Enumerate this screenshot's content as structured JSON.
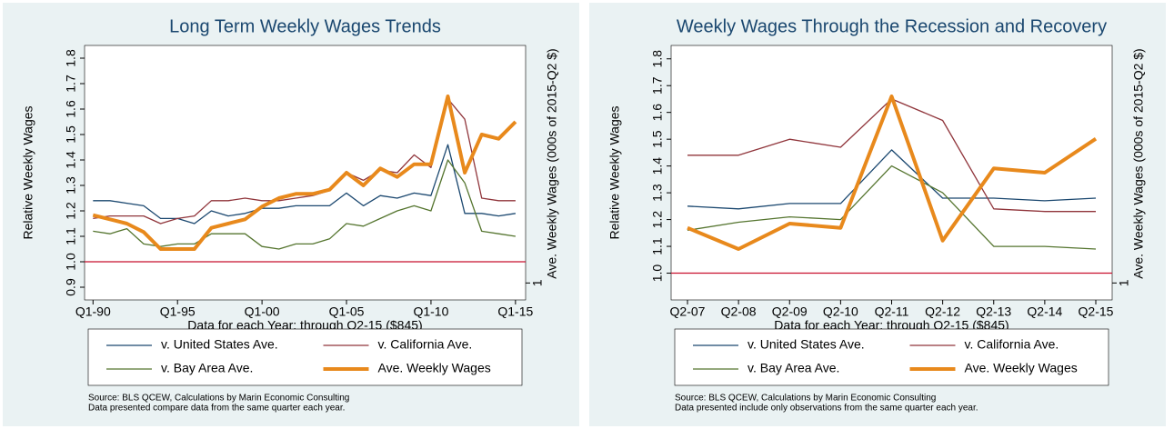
{
  "chart_data": [
    {
      "type": "line",
      "title": "Long Term Weekly Wages Trends",
      "xlabel": "Data for each Year: through Q2-15 ($845)",
      "ylabel": "Relative Weekly Wages",
      "y2label": "Ave. Weekly Wages (000s of 2015-Q2 $)",
      "x": [
        1990,
        1991,
        1992,
        1993,
        1994,
        1995,
        1996,
        1997,
        1998,
        1999,
        2000,
        2001,
        2002,
        2003,
        2004,
        2005,
        2006,
        2007,
        2008,
        2009,
        2010,
        2011,
        2012,
        2013,
        2014,
        2015
      ],
      "xlim": [
        1989.5,
        2015.6
      ],
      "xticks": [
        {
          "value": 1990,
          "label": "Q1-90"
        },
        {
          "value": 1995,
          "label": "Q1-95"
        },
        {
          "value": 2000,
          "label": "Q1-00"
        },
        {
          "value": 2005,
          "label": "Q1-05"
        },
        {
          "value": 2010,
          "label": "Q1-10"
        },
        {
          "value": 2015,
          "label": "Q1-15"
        }
      ],
      "ylim": [
        0.85,
        1.85
      ],
      "yticks": [
        0.9,
        {
          "value": 1,
          "label": "1.0"
        },
        1.1,
        1.2,
        1.3,
        1.4,
        1.5,
        1.6,
        1.7,
        1.8
      ],
      "y2lim": [
        0.96,
        1.56
      ],
      "y2ticks": [
        1
      ],
      "refline": 1,
      "refline_color": "#c8102e",
      "series": [
        {
          "name": "v. United States Ave.",
          "color": "#1a476f",
          "values": [
            1.24,
            1.24,
            1.23,
            1.22,
            1.17,
            1.17,
            1.15,
            1.2,
            1.18,
            1.19,
            1.21,
            1.21,
            1.22,
            1.22,
            1.22,
            1.27,
            1.22,
            1.26,
            1.25,
            1.27,
            1.26,
            1.46,
            1.19,
            1.19,
            1.18,
            1.19
          ]
        },
        {
          "name": "v. California Ave.",
          "color": "#90353b",
          "values": [
            1.17,
            1.18,
            1.18,
            1.18,
            1.15,
            1.17,
            1.18,
            1.24,
            1.24,
            1.25,
            1.24,
            1.24,
            1.25,
            1.26,
            1.28,
            1.35,
            1.32,
            1.36,
            1.35,
            1.42,
            1.37,
            1.64,
            1.56,
            1.25,
            1.24,
            1.24
          ]
        },
        {
          "name": "v. Bay Area Ave.",
          "color": "#55752f",
          "values": [
            1.12,
            1.11,
            1.13,
            1.07,
            1.06,
            1.07,
            1.07,
            1.11,
            1.11,
            1.11,
            1.06,
            1.05,
            1.07,
            1.07,
            1.09,
            1.15,
            1.14,
            1.17,
            1.2,
            1.22,
            1.2,
            1.4,
            1.31,
            1.12,
            1.11,
            1.1
          ]
        },
        {
          "name": "Ave. Weekly Wages",
          "color": "#e8891c",
          "axis": "y2",
          "width": 4,
          "values": [
            1.16,
            1.15,
            1.14,
            1.12,
            1.08,
            1.08,
            1.08,
            1.13,
            1.14,
            1.15,
            1.18,
            1.2,
            1.21,
            1.21,
            1.22,
            1.26,
            1.23,
            1.27,
            1.25,
            1.28,
            1.28,
            1.44,
            1.26,
            1.35,
            1.34,
            1.38
          ]
        }
      ],
      "notes": [
        "Source: BLS QCEW, Calculations by Marin Economic Consulting",
        "Data presented compare data from the same quarter each year."
      ]
    },
    {
      "type": "line",
      "title": "Weekly Wages Through the Recession and Recovery",
      "xlabel": "Data for each Year: through Q2-15 ($845)",
      "ylabel": "Relative Weekly Wages",
      "y2label": "Ave. Weekly Wages (000s of 2015-Q2 $)",
      "categories": [
        "Q2-07",
        "Q2-08",
        "Q2-09",
        "Q2-10",
        "Q2-11",
        "Q2-12",
        "Q2-13",
        "Q2-14",
        "Q2-15"
      ],
      "ylim": [
        0.9,
        1.85
      ],
      "yticks": [
        {
          "value": 1,
          "label": "1.0"
        },
        1.1,
        1.2,
        1.3,
        1.4,
        1.5,
        1.6,
        1.7,
        1.8
      ],
      "y2lim": [
        0.96,
        1.56
      ],
      "y2ticks": [
        1
      ],
      "refline": 1,
      "refline_color": "#c8102e",
      "series": [
        {
          "name": "v. United States Ave.",
          "color": "#1a476f",
          "values": [
            1.25,
            1.24,
            1.26,
            1.26,
            1.46,
            1.28,
            1.28,
            1.27,
            1.28
          ]
        },
        {
          "name": "v. California Ave.",
          "color": "#90353b",
          "values": [
            1.44,
            1.44,
            1.5,
            1.47,
            1.65,
            1.57,
            1.24,
            1.23,
            1.23
          ]
        },
        {
          "name": "v. Bay Area Ave.",
          "color": "#55752f",
          "values": [
            1.16,
            1.19,
            1.21,
            1.2,
            1.4,
            1.3,
            1.1,
            1.1,
            1.09
          ]
        },
        {
          "name": "Ave. Weekly Wages",
          "color": "#e8891c",
          "axis": "y2",
          "width": 4,
          "values": [
            1.13,
            1.08,
            1.14,
            1.13,
            1.44,
            1.1,
            1.27,
            1.26,
            1.34
          ]
        }
      ],
      "notes": [
        "Source: BLS QCEW, Calculations by Marin Economic Consulting",
        "Data presented include only observations from the same quarter each year."
      ]
    }
  ]
}
